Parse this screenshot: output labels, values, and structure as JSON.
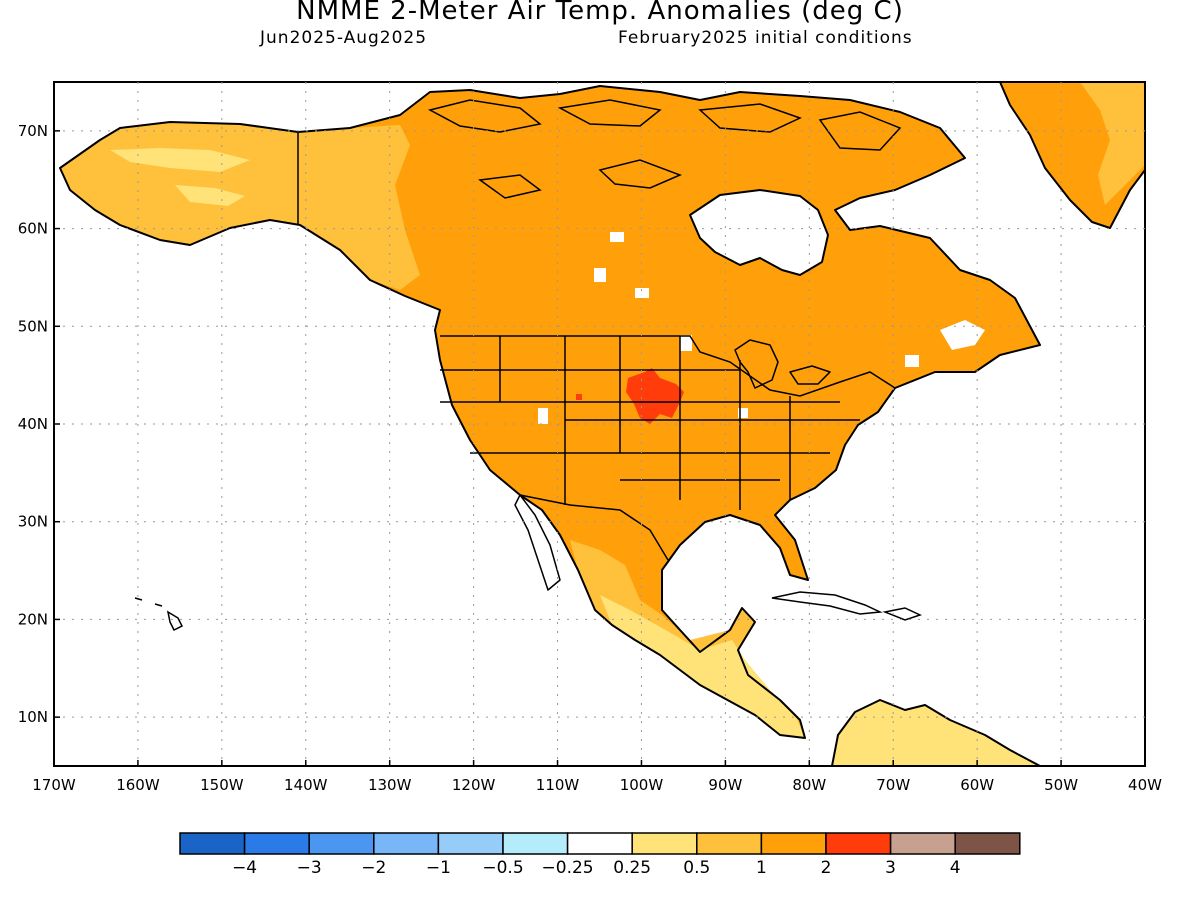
{
  "header": {
    "title": "NMME 2-Meter Air Temp. Anomalies (deg C)",
    "period": "Jun2025-Aug2025",
    "initial_conditions": "February2025 initial conditions"
  },
  "map": {
    "lon_range": [
      -170,
      -40
    ],
    "lat_range": [
      5,
      75
    ],
    "x_ticks": [
      "170W",
      "160W",
      "150W",
      "140W",
      "130W",
      "120W",
      "110W",
      "100W",
      "90W",
      "80W",
      "70W",
      "60W",
      "50W",
      "40W"
    ],
    "y_ticks": [
      "10N",
      "20N",
      "30N",
      "40N",
      "50N",
      "60N",
      "70N"
    ],
    "regions": [
      {
        "name": "north-america-land",
        "category": "1 to 2"
      },
      {
        "name": "alaska-yukon",
        "category": "0.5 to 1"
      },
      {
        "name": "greenland",
        "category": "1 to 2"
      },
      {
        "name": "mexico-south",
        "category": "0.5 to 1"
      },
      {
        "name": "central-america",
        "category": "0.25 to 0.5"
      },
      {
        "name": "northern-south-america",
        "category": "0.25 to 0.5"
      },
      {
        "name": "north-central-us",
        "category": "2 to 3"
      }
    ]
  },
  "colorbar": {
    "colors": [
      "#1a64c8",
      "#2a7ae8",
      "#4a96f0",
      "#78b6f8",
      "#96ccf8",
      "#b4ecfc",
      "#ffffff",
      "#ffe278",
      "#ffc03c",
      "#ffa00a",
      "#ff3c0a",
      "#c8a090",
      "#7e5446"
    ],
    "labels": [
      "−4",
      "−3",
      "−2",
      "−1",
      "−0.5",
      "−0.25",
      "0.25",
      "0.5",
      "1",
      "2",
      "3",
      "4"
    ]
  },
  "colors": {
    "plus_0_25": "#ffe278",
    "plus_0_5": "#ffc03c",
    "plus_1": "#ffa00a",
    "plus_2": "#ff3c0a"
  }
}
